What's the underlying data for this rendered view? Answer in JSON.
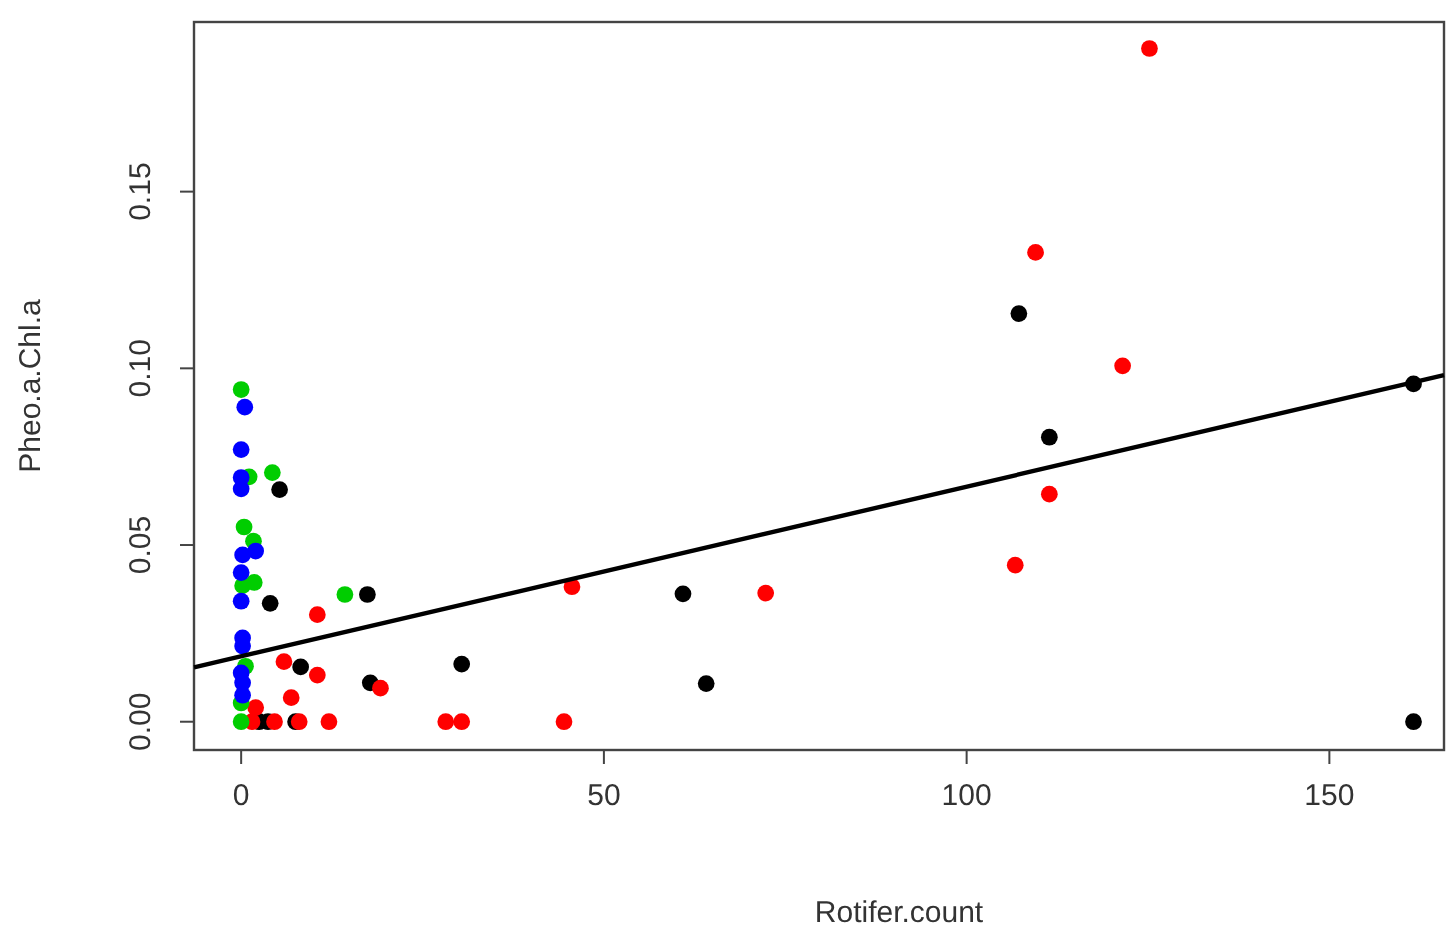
{
  "chart_data": {
    "type": "scatter",
    "xlabel": "Rotifer.count",
    "ylabel": "Pheo.a.Chl.a",
    "xlim": [
      -6.5,
      165.8
    ],
    "ylim": [
      -0.008,
      0.198
    ],
    "xticks": [
      0,
      50,
      100,
      150
    ],
    "yticks": [
      {
        "value": 0,
        "label": "0.00"
      },
      {
        "value": 0.05,
        "label": "0.05"
      },
      {
        "value": 0.1,
        "label": "0.10"
      },
      {
        "value": 0.15,
        "label": "0.15"
      }
    ],
    "series": [
      {
        "marker": "circle",
        "color": "#000000",
        "x": [
          107.2,
          111.4,
          161.6,
          161.6,
          60.9,
          64.1,
          17.4,
          4.0,
          8.2,
          17.8,
          30.4,
          7.5,
          2.5,
          3.7,
          5.3
        ],
        "values": [
          0.1155,
          0.0805,
          0.0956,
          0.0,
          0.0362,
          0.0108,
          0.036,
          0.0335,
          0.0155,
          0.011,
          0.0163,
          0.0,
          0.0,
          0.0,
          0.0657
        ]
      },
      {
        "marker": "circle",
        "color": "#ff0000",
        "x": [
          125.2,
          109.5,
          121.5,
          111.4,
          106.7,
          72.3,
          45.6,
          10.5,
          5.9,
          10.5,
          19.2,
          6.9,
          8.0,
          12.1,
          28.2,
          30.4,
          44.5,
          2.0,
          1.5,
          4.6
        ],
        "values": [
          0.1905,
          0.1328,
          0.1007,
          0.0644,
          0.0443,
          0.0364,
          0.0382,
          0.0303,
          0.017,
          0.0132,
          0.0095,
          0.0068,
          0.0,
          0.0,
          0.0,
          0.0,
          0.0,
          0.004,
          0.0,
          0.0
        ]
      },
      {
        "marker": "circle",
        "color": "#00cd00",
        "x": [
          0,
          1.1,
          4.3,
          0.4,
          1.7,
          1.8,
          0.2,
          14.3,
          0.6,
          0,
          0
        ],
        "values": [
          0.094,
          0.0693,
          0.0705,
          0.0551,
          0.0511,
          0.0394,
          0.0385,
          0.036,
          0.0157,
          0.0053,
          0.0
        ]
      },
      {
        "marker": "circle",
        "color": "#0000ff",
        "x": [
          0.5,
          0,
          0,
          0,
          2.0,
          0.2,
          0,
          0,
          0.2,
          0.2,
          0,
          0.2,
          0.2
        ],
        "values": [
          0.089,
          0.077,
          0.0691,
          0.0659,
          0.0483,
          0.0472,
          0.0422,
          0.0341,
          0.0237,
          0.0214,
          0.0138,
          0.011,
          0.0075
        ]
      },
      {
        "type": "line",
        "marker": "none",
        "color": "#000000",
        "x": [
          -6.5,
          165.8
        ],
        "values": [
          0.0154,
          0.0981
        ]
      }
    ]
  }
}
